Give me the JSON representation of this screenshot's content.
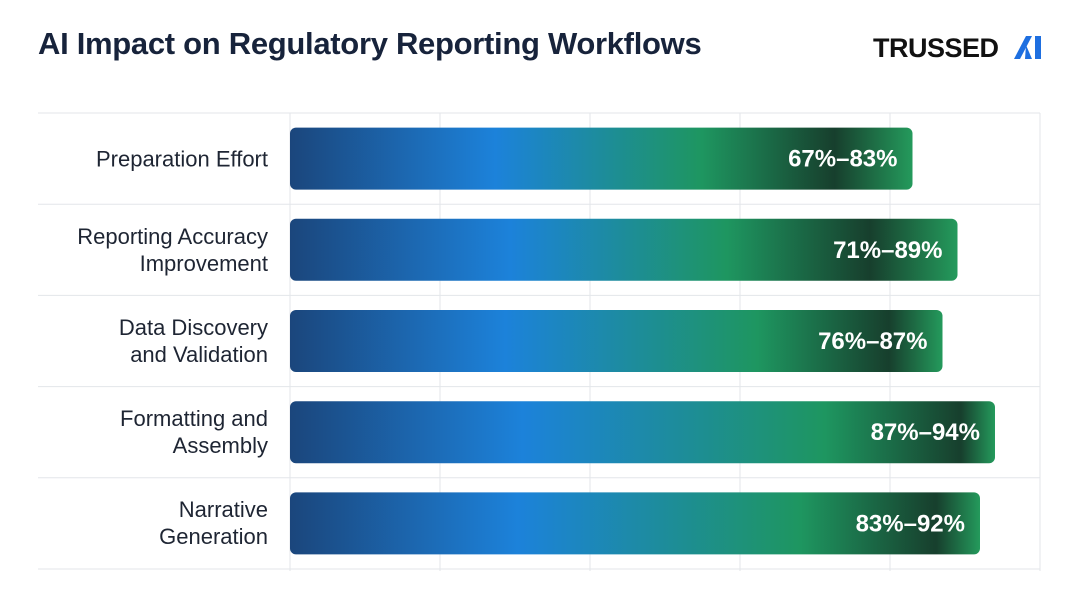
{
  "chart_data": {
    "type": "range-bar",
    "title": "AI Impact on Regulatory Reporting Workflows",
    "logo": "TRUSSED",
    "categories": [
      "Preparation Effort",
      "Reporting Accuracy\nImprovement",
      "Data Discovery\nand Validation",
      "Formatting and\nAssembly",
      "Narrative\nGeneration"
    ],
    "low": [
      67,
      71,
      76,
      87,
      83
    ],
    "high": [
      83,
      89,
      87,
      94,
      92
    ],
    "value_labels": [
      "67%–83%",
      "71%–89%",
      "76%–87%",
      "87%–94%",
      "83%–92%"
    ],
    "xlim": [
      0,
      100
    ],
    "grid": true
  }
}
